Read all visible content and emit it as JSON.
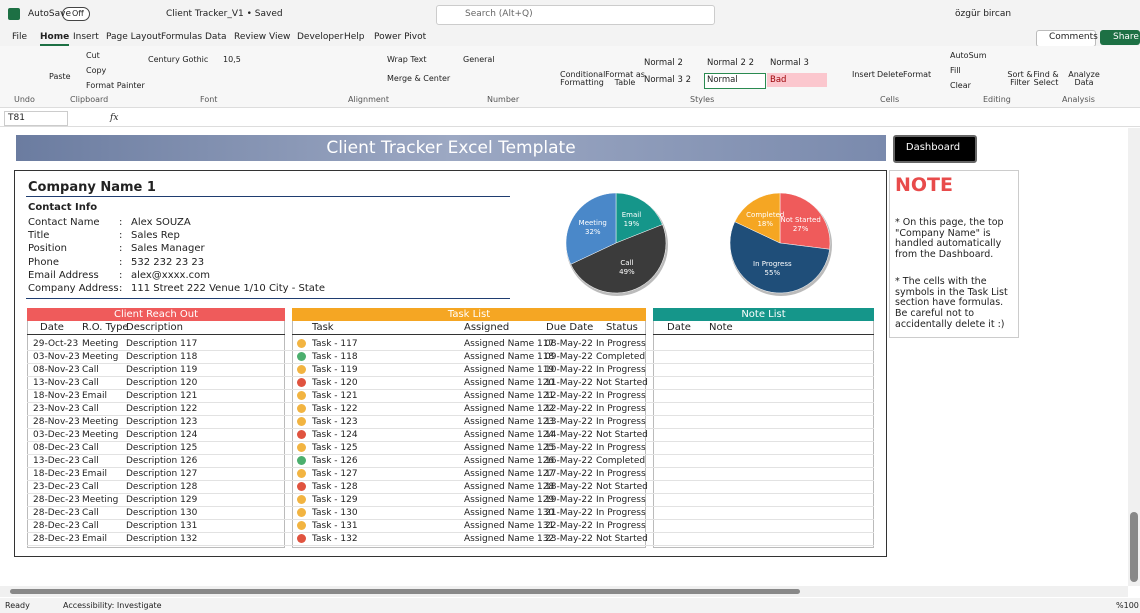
{
  "title_bar": {
    "autosave": "AutoSave",
    "toggle": "Off",
    "file_name": "Client Tracker_V1 • Saved",
    "search": "Search (Alt+Q)",
    "user": "özgür bircan"
  },
  "menu": {
    "tabs": [
      "File",
      "Home",
      "Insert",
      "Page Layout",
      "Formulas",
      "Data",
      "Review",
      "View",
      "Developer",
      "Help",
      "Power Pivot"
    ],
    "comments": "Comments",
    "share": "Share"
  },
  "ribbon": {
    "buttons": [
      "Paste",
      "Cut",
      "Copy",
      "Format Painter",
      "Century Gothic",
      "10,5",
      "Wrap Text",
      "Merge & Center",
      "General",
      "Conditional Formatting",
      "Format as Table",
      "Insert",
      "Delete",
      "Format",
      "AutoSum",
      "Fill",
      "Clear",
      "Sort & Filter",
      "Find & Select",
      "Analyze Data"
    ],
    "styles": [
      "Normal 2",
      "Normal 2 2",
      "Normal 3",
      "Normal 3 2",
      "Normal",
      "Bad"
    ],
    "groups": [
      "Undo",
      "Clipboard",
      "Font",
      "Alignment",
      "Number",
      "Styles",
      "Cells",
      "Editing",
      "Analysis"
    ]
  },
  "formula_bar": {
    "name_box": "T81",
    "fx": "fx"
  },
  "sheet": {
    "title": "Client Tracker Excel Template",
    "dashboard_button": "Dashboard",
    "company": "Company Name 1",
    "contact_heading": "Contact Info",
    "contact_fields": [
      [
        "Contact Name",
        "Alex SOUZA"
      ],
      [
        "Title",
        "Sales Rep"
      ],
      [
        "Position",
        "Sales Manager"
      ],
      [
        "Phone",
        "532 232 23 23"
      ],
      [
        "Email Address",
        "alex@xxxx.com"
      ],
      [
        "Company Address",
        "111 Street 222 Venue 1/10 City - State"
      ]
    ],
    "separator": ":",
    "note": {
      "title": "NOTE",
      "paragraphs": [
        "* On this page, the top \"Company Name\" is handled automatically from the Dashboard.",
        "* The cells with the symbols in the Task List section have formulas. Be careful not to accidentally delete it :)"
      ]
    },
    "charts": [
      {
        "type": "pie",
        "categories": [
          "Email",
          "Call",
          "Meeting"
        ],
        "values": [
          19,
          49,
          32
        ],
        "value_labels": [
          "19%",
          "49%",
          "32%"
        ],
        "colors": [
          "#15968a",
          "#3b3b3b",
          "#4a88c9"
        ]
      },
      {
        "type": "pie",
        "categories": [
          "Not Started",
          "In Progress",
          "Completed"
        ],
        "values": [
          27,
          55,
          18
        ],
        "value_labels": [
          "27%",
          "55%",
          "18%"
        ],
        "colors": [
          "#ef5b5b",
          "#1f4e79",
          "#f5a623"
        ]
      }
    ],
    "client_reach_out": {
      "title": "Client Reach Out",
      "headers": [
        "Date",
        "R.O. Type",
        "Description"
      ],
      "rows": [
        [
          "29-Oct-23",
          "Meeting",
          "Description 117"
        ],
        [
          "03-Nov-23",
          "Meeting",
          "Description 118"
        ],
        [
          "08-Nov-23",
          "Call",
          "Description 119"
        ],
        [
          "13-Nov-23",
          "Call",
          "Description 120"
        ],
        [
          "18-Nov-23",
          "Email",
          "Description 121"
        ],
        [
          "23-Nov-23",
          "Call",
          "Description 122"
        ],
        [
          "28-Nov-23",
          "Meeting",
          "Description 123"
        ],
        [
          "03-Dec-23",
          "Meeting",
          "Description 124"
        ],
        [
          "08-Dec-23",
          "Call",
          "Description 125"
        ],
        [
          "13-Dec-23",
          "Call",
          "Description 126"
        ],
        [
          "18-Dec-23",
          "Email",
          "Description 127"
        ],
        [
          "23-Dec-23",
          "Call",
          "Description 128"
        ],
        [
          "28-Dec-23",
          "Meeting",
          "Description 129"
        ],
        [
          "28-Dec-23",
          "Call",
          "Description 130"
        ],
        [
          "28-Dec-23",
          "Call",
          "Description 131"
        ],
        [
          "28-Dec-23",
          "Email",
          "Description 132"
        ]
      ]
    },
    "task_list": {
      "title": "Task List",
      "headers": [
        "Task",
        "Assigned",
        "Due Date",
        "Status"
      ],
      "rows": [
        [
          "Task - 117",
          "Assigned Name 117",
          "08-May-22",
          "In Progress"
        ],
        [
          "Task - 118",
          "Assigned Name 118",
          "09-May-22",
          "Completed"
        ],
        [
          "Task - 119",
          "Assigned Name 119",
          "10-May-22",
          "In Progress"
        ],
        [
          "Task - 120",
          "Assigned Name 120",
          "11-May-22",
          "Not Started"
        ],
        [
          "Task - 121",
          "Assigned Name 121",
          "12-May-22",
          "In Progress"
        ],
        [
          "Task - 122",
          "Assigned Name 122",
          "12-May-22",
          "In Progress"
        ],
        [
          "Task - 123",
          "Assigned Name 123",
          "13-May-22",
          "In Progress"
        ],
        [
          "Task - 124",
          "Assigned Name 124",
          "14-May-22",
          "Not Started"
        ],
        [
          "Task - 125",
          "Assigned Name 125",
          "15-May-22",
          "In Progress"
        ],
        [
          "Task - 126",
          "Assigned Name 126",
          "16-May-22",
          "Completed"
        ],
        [
          "Task - 127",
          "Assigned Name 127",
          "17-May-22",
          "In Progress"
        ],
        [
          "Task - 128",
          "Assigned Name 128",
          "18-May-22",
          "Not Started"
        ],
        [
          "Task - 129",
          "Assigned Name 129",
          "19-May-22",
          "In Progress"
        ],
        [
          "Task - 130",
          "Assigned Name 130",
          "21-May-22",
          "In Progress"
        ],
        [
          "Task - 131",
          "Assigned Name 131",
          "22-May-22",
          "In Progress"
        ],
        [
          "Task - 132",
          "Assigned Name 132",
          "23-May-22",
          "Not Started"
        ]
      ],
      "status_colors": {
        "In Progress": "#f2b441",
        "Completed": "#4caf6e",
        "Not Started": "#e0533f"
      }
    },
    "note_list": {
      "title": "Note  List",
      "headers": [
        "Date",
        "Note"
      ]
    }
  },
  "status_bar": {
    "ready": "Ready",
    "accessibility": "Accessibility: Investigate",
    "zoom": "%100"
  }
}
